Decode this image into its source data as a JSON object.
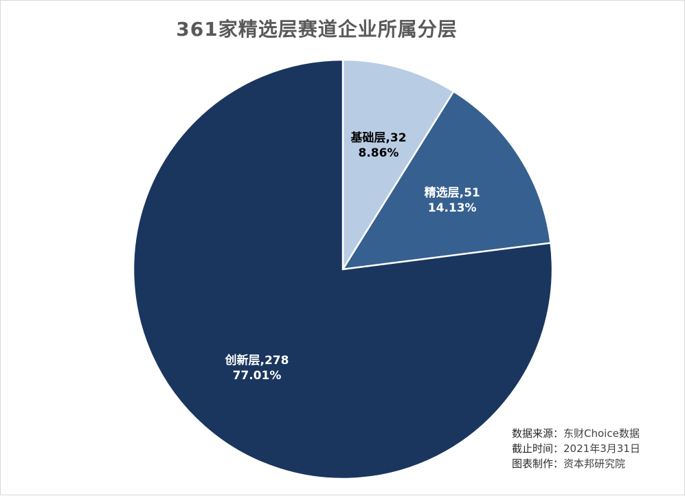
{
  "chart_data": {
    "type": "pie",
    "title": "361家精选层赛道企业所属分层",
    "slices": [
      {
        "label": "基础层",
        "value": 32,
        "percent": "8.86%",
        "color": "#b8cce4",
        "text_color": "#000000"
      },
      {
        "label": "精选层",
        "value": 51,
        "percent": "14.13%",
        "color": "#36608f",
        "text_color": "#ffffff"
      },
      {
        "label": "创新层",
        "value": 278,
        "percent": "77.01%",
        "color": "#1a365e",
        "text_color": "#ffffff"
      }
    ]
  },
  "notes": [
    {
      "key": "数据来源：",
      "value": "东财Choice数据"
    },
    {
      "key": "截止时间：",
      "value": "2021年3月31日"
    },
    {
      "key": "图表制作：",
      "value": "资本邦研究院"
    }
  ]
}
